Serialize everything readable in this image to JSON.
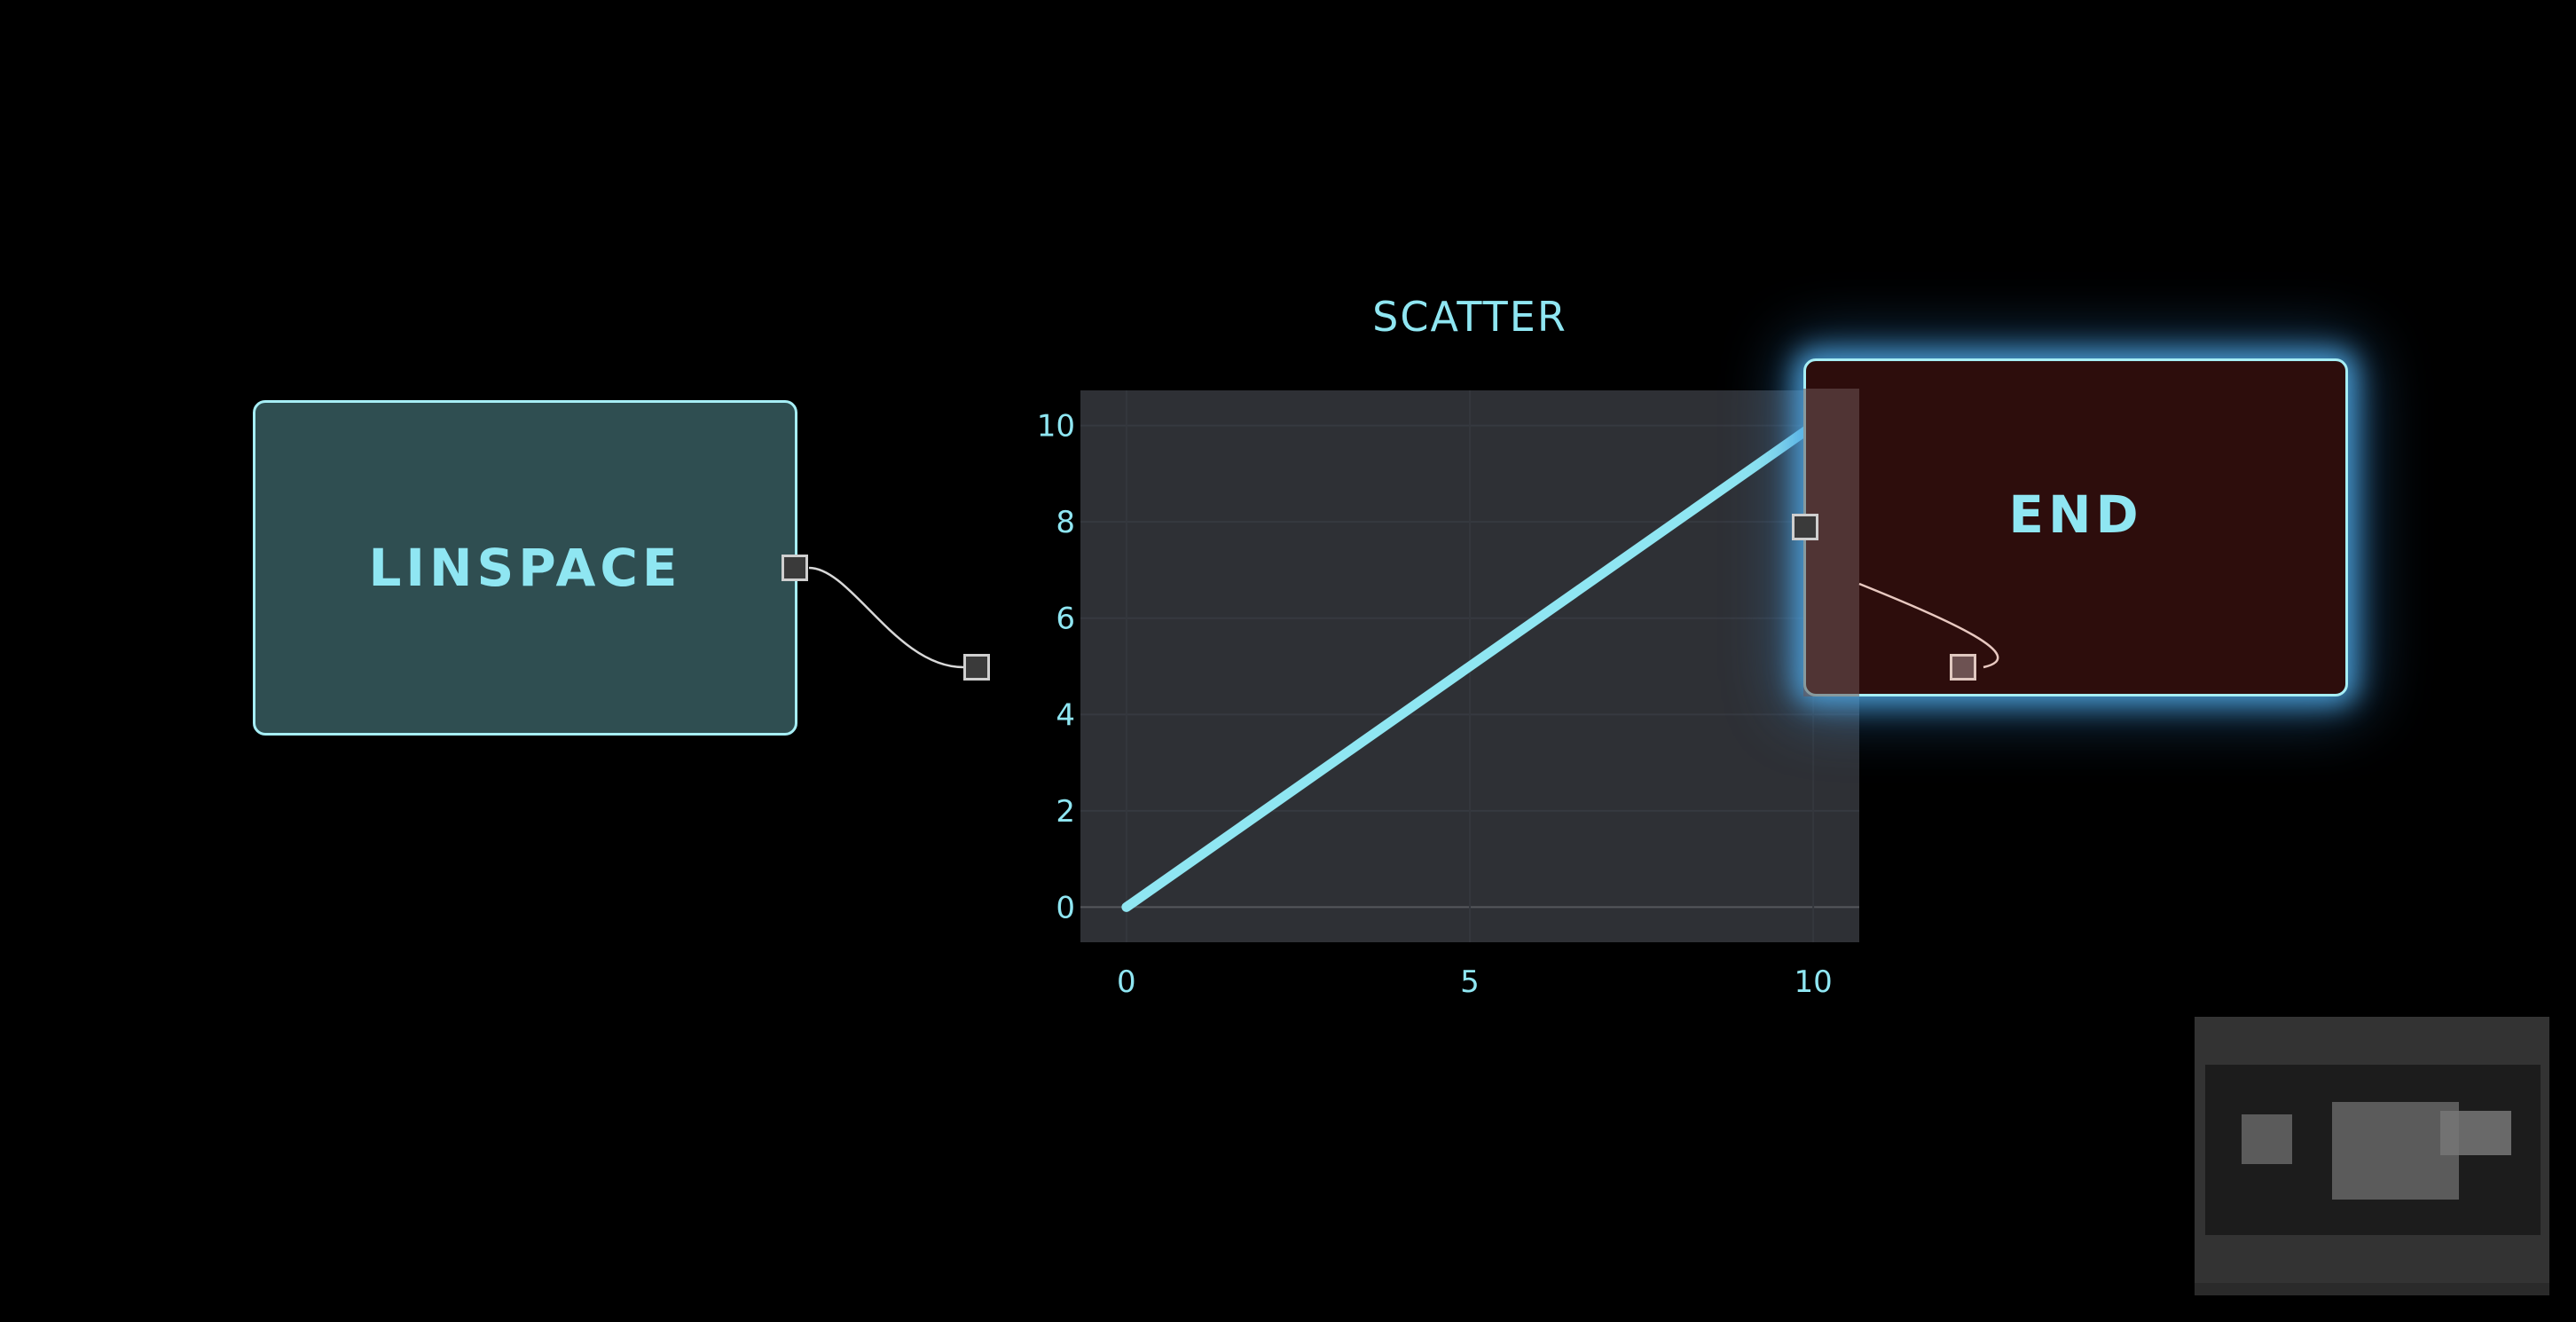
{
  "canvas": {
    "background": "#000000"
  },
  "nodes": {
    "linspace": {
      "label": "LINSPACE",
      "fill": "#2f4e51",
      "border": "#a6eef5"
    },
    "scatter": {
      "label": "SCATTER"
    },
    "end": {
      "label": "END",
      "fill": "#2d0d0c",
      "border": "#a6eef5",
      "glow": "#50aae6",
      "selected": true
    }
  },
  "chart_data": {
    "type": "line",
    "x": [
      0,
      10
    ],
    "y": [
      0,
      10
    ],
    "xticks": [
      "0",
      "5",
      "10"
    ],
    "yticks": [
      "0",
      "2",
      "4",
      "6",
      "8",
      "10"
    ],
    "xlim": [
      -0.67,
      10.67
    ],
    "ylim": [
      -0.73,
      10.73
    ],
    "line_color": "#8fe6f2",
    "plot_background": "#2e3035",
    "grid": true
  },
  "colors": {
    "accent": "#8fe6f2",
    "port_fill": "#3a3a3a",
    "port_border": "#cfcfcf",
    "edge": "#d8d8d8"
  },
  "minimap": {
    "visible": true
  }
}
